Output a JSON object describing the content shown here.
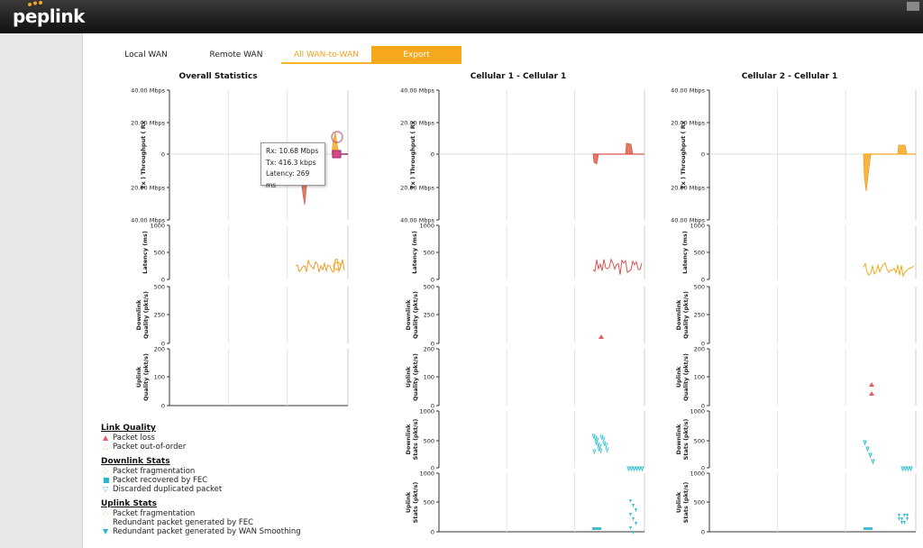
{
  "brand": {
    "logo_text": "peplink",
    "dot_colors": [
      "#f7a91e",
      "#f7a91e",
      "#f7a91e"
    ]
  },
  "tabs": [
    {
      "label": "Local WAN",
      "state": "default"
    },
    {
      "label": "Remote WAN",
      "state": "default"
    },
    {
      "label": "All WAN-to-WAN",
      "state": "active"
    },
    {
      "label": "Export",
      "state": "button"
    }
  ],
  "charts": [
    {
      "title": "Overall Statistics"
    },
    {
      "title": "Cellular 1 - Cellular 1"
    },
    {
      "title": "Cellular 2 - Cellular 1"
    }
  ],
  "axes": {
    "throughput_ylabel": "Tx ) Throughput ( Rx",
    "throughput_ticks": [
      "40.00 Mbps",
      "20.00 Mbps",
      "0",
      "20.00 Mbps",
      "40.00 Mbps"
    ],
    "latency_ylabel": "Latency (ms)",
    "latency_ticks": [
      "1000",
      "500",
      "0"
    ],
    "downlink_quality_ylabel_1": "Downlink",
    "downlink_quality_ylabel_2": "Quality (pkt/s)",
    "downlink_quality_ticks": [
      "500",
      "250",
      "0"
    ],
    "uplink_quality_ylabel_1": "Uplink",
    "uplink_quality_ylabel_2": "Quality (pkt/s)",
    "uplink_quality_ticks": [
      "200",
      "100",
      "0"
    ],
    "downlink_stats_ylabel_1": "Downlink",
    "downlink_stats_ylabel_2": "Stats (pkt/s)",
    "downlink_stats_ticks": [
      "1000",
      "500",
      "0"
    ],
    "uplink_stats_ylabel_1": "Uplink",
    "uplink_stats_ylabel_2": "Stats (pkt/s)",
    "uplink_stats_ticks": [
      "1000",
      "500",
      "0"
    ]
  },
  "tooltip": {
    "rx": "Rx: 10.68 Mbps",
    "tx": "Tx: 416.3 kbps",
    "latency": "Latency: 269 ms"
  },
  "legend": {
    "sections": [
      {
        "title": "Link Quality",
        "items": [
          {
            "label": "Packet loss",
            "symbol": "▲",
            "color": "#e85a6e"
          },
          {
            "label": "Packet out-of-order",
            "symbol": "△",
            "color": "#f3c9a8"
          }
        ]
      },
      {
        "title": "Downlink Stats",
        "items": [
          {
            "label": "Packet fragmentation",
            "symbol": "◇",
            "color": "#f3c9a8"
          },
          {
            "label": "Packet recovered by FEC",
            "symbol": "■",
            "color": "#2cb5c8"
          },
          {
            "label": "Discarded duplicated packet",
            "symbol": "▽",
            "color": "#3cc0d0"
          }
        ]
      },
      {
        "title": "Uplink Stats",
        "items": [
          {
            "label": "Packet fragmentation",
            "symbol": "◇",
            "color": "#f3c9a8"
          },
          {
            "label": "Redundant packet generated by FEC",
            "symbol": "◦",
            "color": "#9ad6e0"
          },
          {
            "label": "Redundant packet generated by WAN Smoothing",
            "symbol": "▼",
            "color": "#2cb5c8"
          }
        ]
      }
    ]
  },
  "colors": {
    "accent": "#f7a91e",
    "cellular1": "#d9534f",
    "cellular2": "#f7a91e",
    "stats": "#3cc0d0"
  }
}
